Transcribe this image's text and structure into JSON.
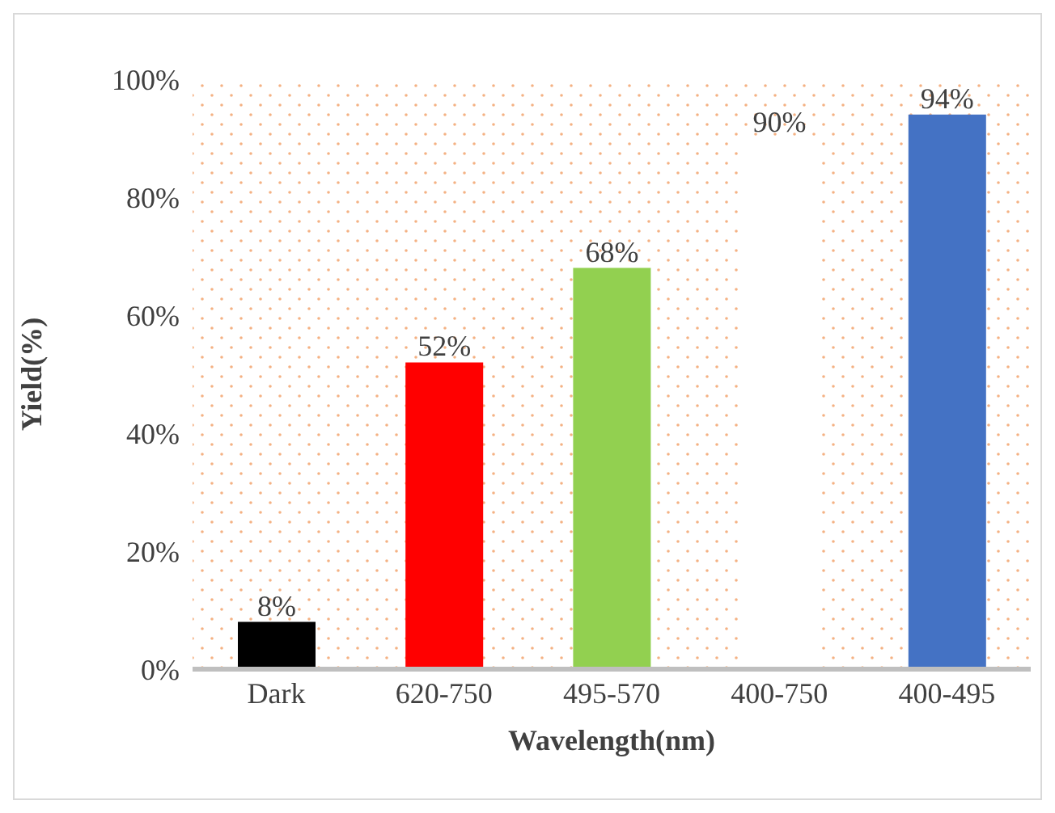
{
  "chart_data": {
    "type": "bar",
    "xlabel": "Wavelength(nm)",
    "ylabel": "Yield(%)",
    "categories": [
      "Dark",
      "620-750",
      "495-570",
      "400-750",
      "400-495"
    ],
    "values": [
      8,
      52,
      68,
      90,
      94
    ],
    "colors": [
      "#000000",
      "#ff0000",
      "#92d050",
      "#ffffff",
      "#4472c4"
    ],
    "value_labels": [
      "8%",
      "52%",
      "68%",
      "90%",
      "94%"
    ],
    "ylim": [
      0,
      100
    ],
    "yticks": [
      {
        "value": 0,
        "label": "0%"
      },
      {
        "value": 20,
        "label": "20%"
      },
      {
        "value": 40,
        "label": "40%"
      },
      {
        "value": 60,
        "label": "60%"
      },
      {
        "value": 80,
        "label": "80%"
      },
      {
        "value": 100,
        "label": "100%"
      }
    ],
    "grid": false,
    "legend": false
  }
}
